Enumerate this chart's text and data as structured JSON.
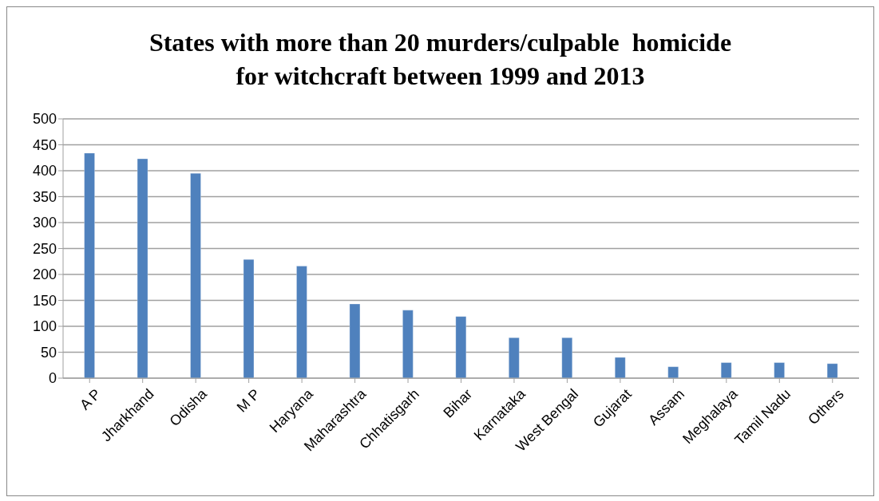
{
  "chart_data": {
    "type": "bar",
    "title": "States with more than 20 murders/culpable  homicide for witchcraft between 1999 and 2013",
    "categories": [
      "A P",
      "Jharkhand",
      "Odisha",
      "M P",
      "Haryana",
      "Maharashtra",
      "Chhatisgarh",
      "Bihar",
      "Karnataka",
      "West Bengal",
      "Gujarat",
      "Assam",
      "Meghalaya",
      "Tamil Nadu",
      "Others"
    ],
    "values": [
      434,
      423,
      395,
      229,
      216,
      143,
      131,
      119,
      78,
      78,
      40,
      22,
      30,
      30,
      28
    ],
    "color": "#4f81bd",
    "ylim": [
      0,
      500
    ],
    "yticks": [
      0,
      50,
      100,
      150,
      200,
      250,
      300,
      350,
      400,
      450,
      500
    ],
    "grid": "y"
  }
}
